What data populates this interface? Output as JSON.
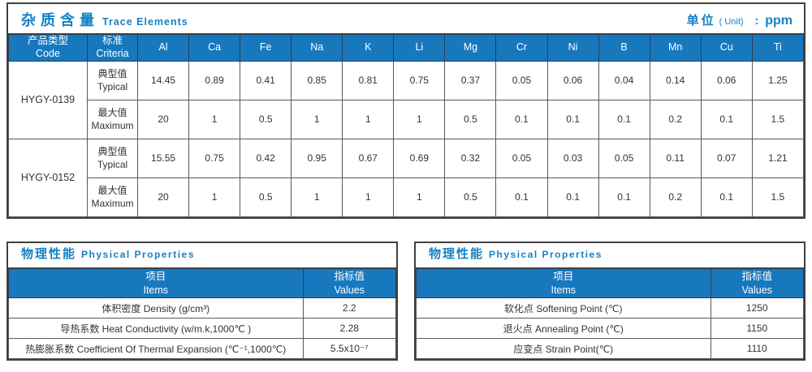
{
  "colors": {
    "header_bg": "#1878BE",
    "title_text": "#1581C5",
    "border_dark": "#404040",
    "border_inner": "#595959",
    "header_text": "#ffffff",
    "value_text": "#333333"
  },
  "trace_table": {
    "title_zh": "杂质含量",
    "title_en": "Trace Elements",
    "unit_label_zh": "单位",
    "unit_label_en": "( Unit)",
    "unit_separator": ":",
    "unit_value": "ppm",
    "col_code_zh": "产品类型",
    "col_code_en": "Code",
    "col_criteria_zh": "标准",
    "col_criteria_en": "Criteria",
    "elements": [
      "Al",
      "Ca",
      "Fe",
      "Na",
      "K",
      "Li",
      "Mg",
      "Cr",
      "Ni",
      "B",
      "Mn",
      "Cu",
      "Ti"
    ],
    "products": [
      {
        "code": "HYGY-0139",
        "rows": [
          {
            "criteria_zh": "典型值",
            "criteria_en": "Typical",
            "values": [
              "14.45",
              "0.89",
              "0.41",
              "0.85",
              "0.81",
              "0.75",
              "0.37",
              "0.05",
              "0.06",
              "0.04",
              "0.14",
              "0.06",
              "1.25"
            ]
          },
          {
            "criteria_zh": "最大值",
            "criteria_en": "Maximum",
            "values": [
              "20",
              "1",
              "0.5",
              "1",
              "1",
              "1",
              "0.5",
              "0.1",
              "0.1",
              "0.1",
              "0.2",
              "0.1",
              "1.5"
            ]
          }
        ]
      },
      {
        "code": "HYGY-0152",
        "rows": [
          {
            "criteria_zh": "典型值",
            "criteria_en": "Typical",
            "values": [
              "15.55",
              "0.75",
              "0.42",
              "0.95",
              "0.67",
              "0.69",
              "0.32",
              "0.05",
              "0.03",
              "0.05",
              "0.11",
              "0.07",
              "1.21"
            ]
          },
          {
            "criteria_zh": "最大值",
            "criteria_en": "Maximum",
            "values": [
              "20",
              "1",
              "0.5",
              "1",
              "1",
              "1",
              "0.5",
              "0.1",
              "0.1",
              "0.1",
              "0.2",
              "0.1",
              "1.5"
            ]
          }
        ]
      }
    ]
  },
  "physical_tables": [
    {
      "title_zh": "物理性能",
      "title_en": "Physical Properties",
      "col_item_zh": "项目",
      "col_item_en": "Items",
      "col_value_zh": "指标值",
      "col_value_en": "Values",
      "rows": [
        {
          "item": "体积密度 Density (g/cm³)",
          "value": "2.2"
        },
        {
          "item": "导热系数 Heat Conductivity (w/m.k,1000℃ )",
          "value": "2.28"
        },
        {
          "item": "热膨胀系数 Coefficient Of Thermal Expansion (℃⁻¹,1000℃)",
          "value": "5.5x10⁻⁷"
        }
      ]
    },
    {
      "title_zh": "物理性能",
      "title_en": "Physical Properties",
      "col_item_zh": "项目",
      "col_item_en": "Items",
      "col_value_zh": "指标值",
      "col_value_en": "Values",
      "rows": [
        {
          "item": "软化点 Softening Point (℃)",
          "value": "1250"
        },
        {
          "item": "退火点 Annealing Point (℃)",
          "value": "1150"
        },
        {
          "item": "应变点 Strain Point(℃)",
          "value": "1110"
        }
      ]
    }
  ]
}
